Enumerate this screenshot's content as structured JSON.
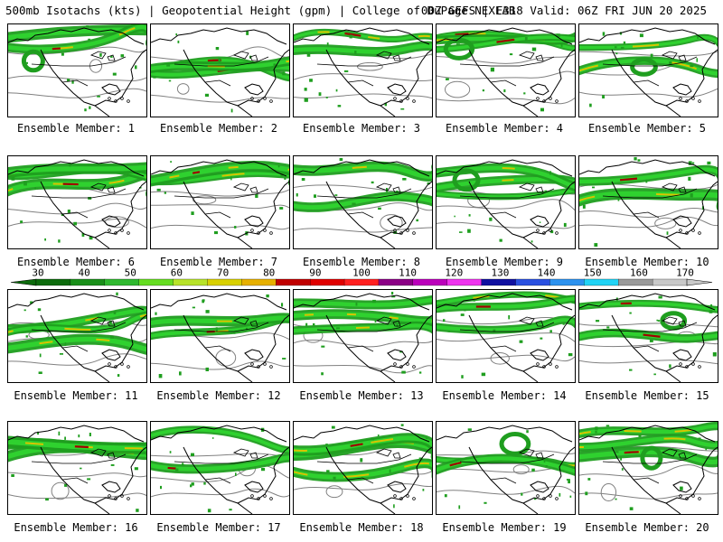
{
  "header": {
    "title": "500mb Isotachs (kts) | Geopotential Height (gpm) | College of DuPage NEXLAB",
    "run_info": "00Z GEFS | F318 Valid: 06Z FRI JUN 20 2025"
  },
  "colorbar": {
    "labels": [
      "30",
      "40",
      "50",
      "60",
      "70",
      "80",
      "90",
      "100",
      "110",
      "120",
      "130",
      "140",
      "150",
      "160",
      "170"
    ],
    "colors": [
      "#0d6b0d",
      "#1a8f1a",
      "#2fb82f",
      "#66dd22",
      "#b7e32a",
      "#d8d000",
      "#e6b000",
      "#c00000",
      "#e00000",
      "#ff2020",
      "#8b0085",
      "#bb00bb",
      "#ee33ee",
      "#1010a0",
      "#2a50e0",
      "#2d92ee",
      "#22d3f5",
      "#9a9a9a",
      "#c9c9c9"
    ]
  },
  "member_label_prefix": "Ensemble Member:",
  "members": [
    {
      "label": "Ensemble Member: 1",
      "number": 1
    },
    {
      "label": "Ensemble Member: 2",
      "number": 2
    },
    {
      "label": "Ensemble Member: 3",
      "number": 3
    },
    {
      "label": "Ensemble Member: 4",
      "number": 4
    },
    {
      "label": "Ensemble Member: 5",
      "number": 5
    },
    {
      "label": "Ensemble Member: 6",
      "number": 6
    },
    {
      "label": "Ensemble Member: 7",
      "number": 7
    },
    {
      "label": "Ensemble Member: 8",
      "number": 8
    },
    {
      "label": "Ensemble Member: 9",
      "number": 9
    },
    {
      "label": "Ensemble Member: 10",
      "number": 10
    },
    {
      "label": "Ensemble Member: 11",
      "number": 11
    },
    {
      "label": "Ensemble Member: 12",
      "number": 12
    },
    {
      "label": "Ensemble Member: 13",
      "number": 13
    },
    {
      "label": "Ensemble Member: 14",
      "number": 14
    },
    {
      "label": "Ensemble Member: 15",
      "number": 15
    },
    {
      "label": "Ensemble Member: 16",
      "number": 16
    },
    {
      "label": "Ensemble Member: 17",
      "number": 17
    },
    {
      "label": "Ensemble Member: 18",
      "number": 18
    },
    {
      "label": "Ensemble Member: 19",
      "number": 19
    },
    {
      "label": "Ensemble Member: 20",
      "number": 20
    }
  ],
  "colors": {
    "jet_green": "#1f9e1f",
    "jet_core_yellow": "#d8c400",
    "jet_core_red": "#a00000",
    "height_contour": "#808080",
    "coastline": "#000000"
  }
}
